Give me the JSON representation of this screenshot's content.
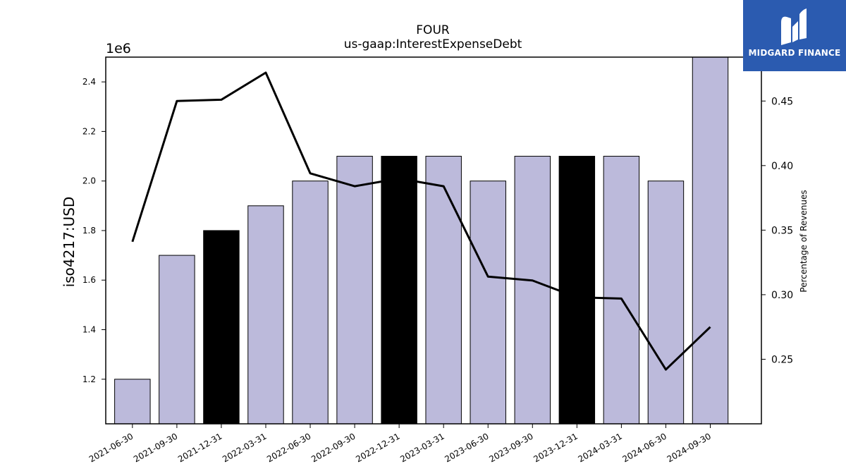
{
  "chart_data": {
    "type": "bar",
    "title": "FOUR",
    "subtitle": "us-gaap:InterestExpenseDebt",
    "ylabel": "iso4217:USD",
    "y_offset_label": "1e6",
    "y2label": "Percentage of Revenues",
    "categories": [
      "2021-06-30",
      "2021-09-30",
      "2021-12-31",
      "2022-03-31",
      "2022-06-30",
      "2022-09-30",
      "2022-12-31",
      "2023-03-31",
      "2023-06-30",
      "2023-09-30",
      "2023-12-31",
      "2024-03-31",
      "2024-06-30",
      "2024-09-30"
    ],
    "values": [
      1200000,
      1700000,
      1800000,
      1900000,
      2000000,
      2100000,
      2100000,
      2100000,
      2000000,
      2100000,
      2100000,
      2100000,
      2000000,
      2500000
    ],
    "bar_colors": [
      "#bcbadb",
      "#bcbadb",
      "#000000",
      "#bcbadb",
      "#bcbadb",
      "#bcbadb",
      "#000000",
      "#bcbadb",
      "#bcbadb",
      "#bcbadb",
      "#000000",
      "#bcbadb",
      "#bcbadb",
      "#bcbadb"
    ],
    "line_values": [
      0.341,
      0.45,
      0.451,
      0.472,
      0.394,
      0.384,
      0.39,
      0.384,
      0.314,
      0.311,
      0.298,
      0.297,
      0.242,
      0.275
    ],
    "ylim": [
      1020000,
      2500000
    ],
    "yticks": [
      1.2,
      1.4,
      1.6,
      1.8,
      2.0,
      2.2,
      2.4
    ],
    "y2lim": [
      0.2,
      0.484
    ],
    "y2ticks": [
      0.25,
      0.3,
      0.35,
      0.4,
      0.45
    ]
  },
  "logo": {
    "text": "MIDGARD FINANCE",
    "color": "#2b5bb0"
  }
}
